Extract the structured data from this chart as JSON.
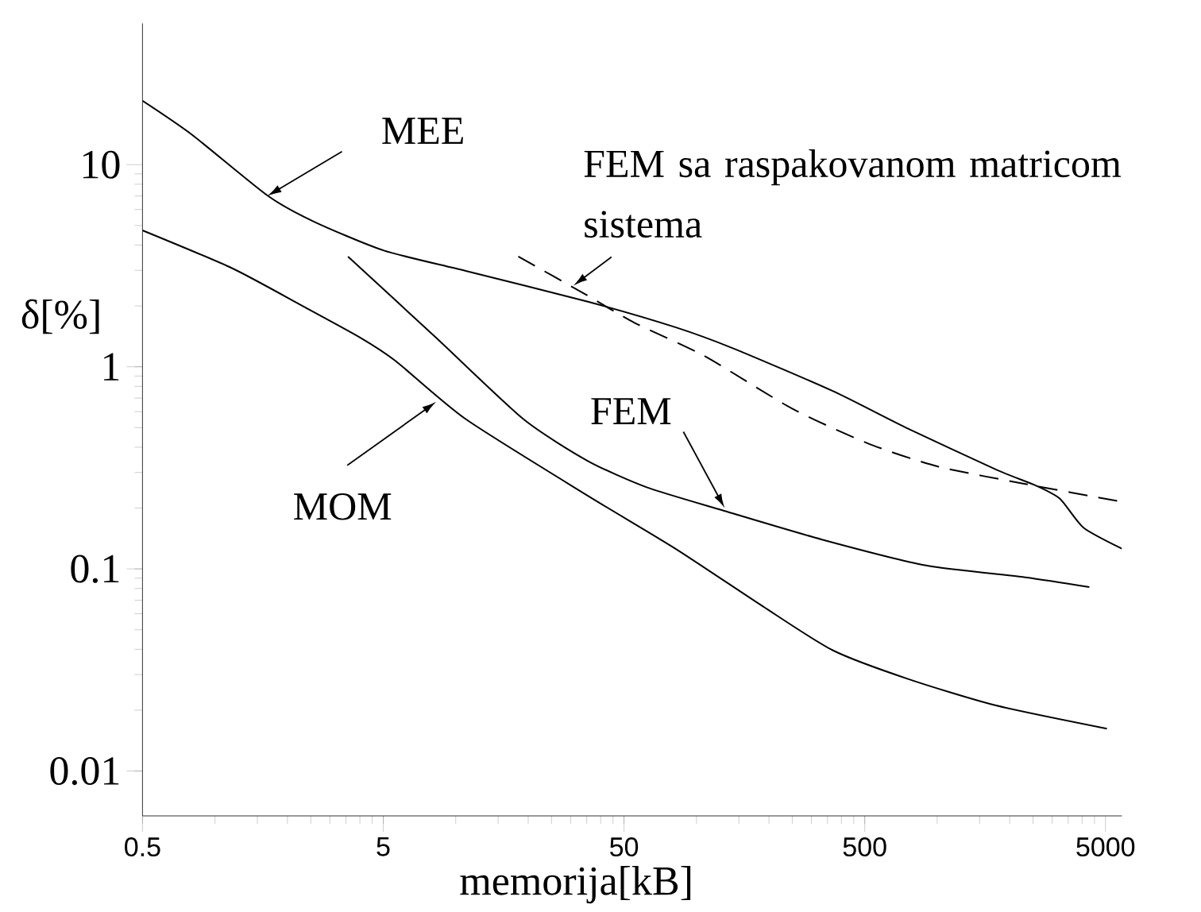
{
  "chart_data": {
    "type": "line",
    "xlabel": "memorija[kB]",
    "ylabel": "δ[%]",
    "log": "xy",
    "grid": false,
    "marker": "none",
    "xlim": [
      0.5,
      5850
    ],
    "ylim": [
      0.006,
      50
    ],
    "xticks": [
      0.5,
      5,
      50,
      500,
      5000
    ],
    "yticks": [
      0.01,
      0.1,
      1,
      10
    ],
    "series": [
      {
        "color": "#000000",
        "line_style": "solid",
        "x": [
          0.5,
          0.8,
          1.65,
          2.58,
          5.03,
          11.0,
          35.4,
          81.7,
          143,
          368,
          760,
          1757,
          2596,
          3240,
          4052,
          5850
        ],
        "values": [
          20.7,
          14.1,
          7.04,
          5.22,
          3.76,
          2.98,
          2.1,
          1.57,
          1.23,
          0.759,
          0.493,
          0.31,
          0.257,
          0.222,
          0.16,
          0.126
        ]
      },
      {
        "color": "#000000",
        "line_style": "dashed",
        "x": [
          18.2,
          34.4,
          55.3,
          108,
          249,
          515,
          1007,
          2323,
          5850
        ],
        "values": [
          3.51,
          2.29,
          1.65,
          1.13,
          0.622,
          0.418,
          0.321,
          0.263,
          0.215
        ]
      },
      {
        "color": "#000000",
        "line_style": "solid",
        "x": [
          3.57,
          8.3,
          19.1,
          35.4,
          61.8,
          128,
          330,
          899,
          2323,
          4285
        ],
        "values": [
          3.51,
          1.39,
          0.551,
          0.342,
          0.254,
          0.195,
          0.14,
          0.104,
          0.0909,
          0.0813
        ]
      },
      {
        "color": "#000000",
        "line_style": "solid",
        "x": [
          0.5,
          1.18,
          2.31,
          4.03,
          5.62,
          11.0,
          35.4,
          81.7,
          189,
          368,
          760,
          1757,
          5070
        ],
        "values": [
          4.73,
          3.07,
          2.0,
          1.39,
          1.07,
          0.551,
          0.23,
          0.126,
          0.0652,
          0.0396,
          0.0285,
          0.0211,
          0.0162
        ]
      }
    ],
    "annotations": [
      {
        "text": "MEE",
        "x": 1.65,
        "y": 7.0
      },
      {
        "text": "FEM sa raspakovanom matricom sistema",
        "x": 30.8,
        "y": 2.52
      },
      {
        "text": "FEM",
        "x": 131,
        "y": 0.2
      },
      {
        "text": "MOM",
        "x": 8.3,
        "y": 0.671
      }
    ]
  }
}
